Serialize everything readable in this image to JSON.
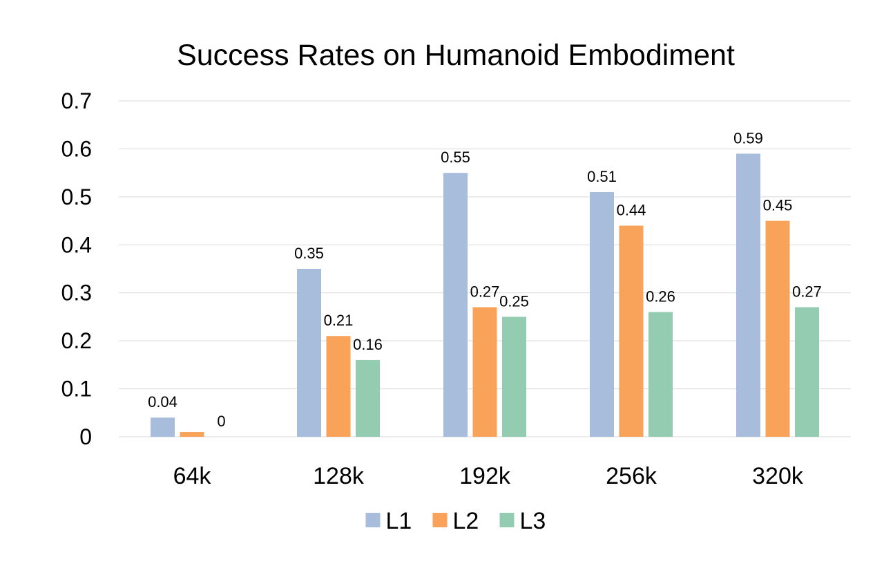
{
  "chart_data": {
    "type": "bar",
    "title": "Success Rates on Humanoid Embodiment",
    "xlabel": "",
    "ylabel": "",
    "categories": [
      "64k",
      "128k",
      "192k",
      "256k",
      "320k"
    ],
    "series": [
      {
        "name": "L1",
        "color": "#A7BDDB",
        "values": [
          0.04,
          0.35,
          0.55,
          0.51,
          0.59
        ],
        "labels": [
          "0.04",
          "0.35",
          "0.55",
          "0.51",
          "0.59"
        ]
      },
      {
        "name": "L2",
        "color": "#F9A25A",
        "values": [
          0.01,
          0.21,
          0.27,
          0.44,
          0.45
        ],
        "labels": [
          "",
          "0.21",
          "0.27",
          "0.44",
          "0.45"
        ]
      },
      {
        "name": "L3",
        "color": "#93CCB1",
        "values": [
          0,
          0.16,
          0.25,
          0.26,
          0.27
        ],
        "labels": [
          "0",
          "0.16",
          "0.25",
          "0.26",
          "0.27"
        ]
      }
    ],
    "ylim": [
      0,
      0.7
    ],
    "yticks": [
      "0",
      "0.1",
      "0.2",
      "0.3",
      "0.4",
      "0.5",
      "0.6",
      "0.7"
    ],
    "grid": true,
    "gridColor": "#D9D9D9",
    "legend": "bottom-center"
  }
}
